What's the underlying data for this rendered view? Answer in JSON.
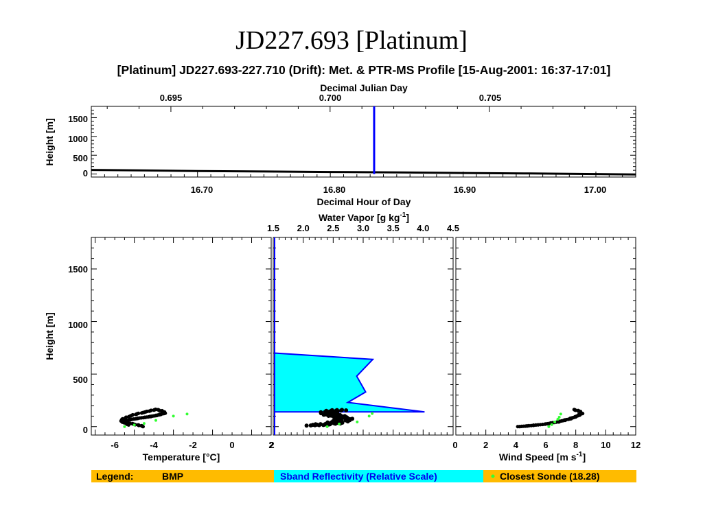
{
  "page_title": "JD227.693 [Platinum]",
  "chart_title": "[Platinum] JD227.693-227.710 (Drift): Met. & PTR-MS Profile [15-Aug-2001: 16:37-17:01]",
  "colors": {
    "legend_bar": "#ffbb00",
    "sband_fill": "#00ffff",
    "sband_line": "#0000ff",
    "sonde_points": "#33ff33",
    "bmp_points": "#000000",
    "time_marker": "#0000ff"
  },
  "legend": {
    "label": "Legend:",
    "bmp": "BMP",
    "sband": "Sband Reflectivity (Relative Scale)",
    "sonde": "Closest Sonde (18.28)"
  },
  "chart_data": [
    {
      "type": "line",
      "panel": "time-series",
      "xlabel": "Decimal Hour of Day",
      "x2label": "Decimal Julian Day",
      "ylabel": "Height [m]",
      "xlim": [
        16.62,
        17.03
      ],
      "x2lim": [
        0.6925,
        0.7096
      ],
      "ylim": [
        -80,
        1800
      ],
      "x_ticks": [
        "16.70",
        "16.80",
        "16.90",
        "17.00"
      ],
      "x2_ticks": [
        "0.695",
        "0.700",
        "0.705"
      ],
      "y_ticks": [
        "0",
        "500",
        "1000",
        "1500"
      ],
      "series": [
        {
          "name": "BMP",
          "x": [
            16.62,
            16.66,
            16.7,
            16.75,
            16.8,
            16.85,
            16.9,
            16.95,
            17.0,
            17.03
          ],
          "y": [
            110,
            95,
            80,
            68,
            55,
            42,
            28,
            15,
            0,
            -10
          ]
        }
      ],
      "current_time_marker": 16.833
    },
    {
      "type": "scatter",
      "panel": "temperature-profile",
      "xlabel": "Temperature [°C]",
      "ylabel": "Height [m]",
      "xlim": [
        -7.2,
        2
      ],
      "ylim": [
        -80,
        1800
      ],
      "x_ticks": [
        "-6",
        "-4",
        "-2",
        "0",
        "2"
      ],
      "y_ticks": [
        "0",
        "500",
        "1000",
        "1500"
      ],
      "series": [
        {
          "name": "BMP",
          "x": [
            -4.5,
            -4.8,
            -5.2,
            -5.6,
            -5.4,
            -4.8,
            -4.2,
            -3.8,
            -3.4,
            -3.6,
            -3.9,
            -4.3,
            -4.9,
            -5.4,
            -5.7,
            -5.2
          ],
          "y": [
            0,
            15,
            30,
            40,
            60,
            80,
            95,
            110,
            130,
            150,
            165,
            145,
            120,
            90,
            60,
            10
          ]
        },
        {
          "name": "Closest Sonde (18.28)",
          "x": [
            -5.5,
            -5.0,
            -4.5,
            -3.9,
            -3.0,
            -2.3
          ],
          "y": [
            0,
            15,
            30,
            60,
            100,
            120
          ]
        }
      ]
    },
    {
      "type": "area",
      "panel": "water-vapor-profile",
      "x2label": "Water Vapor [g kg-1]",
      "xlim": [
        1.5,
        4.5
      ],
      "ylim": [
        -80,
        1800
      ],
      "x_ticks": [
        "2",
        "0"
      ],
      "x2_ticks": [
        "1.5",
        "2.0",
        "2.5",
        "3.0",
        "3.5",
        "4.0",
        "4.5"
      ],
      "series": [
        {
          "name": "Sband Reflectivity (Relative Scale)",
          "x": [
            0.0,
            0.0,
            0.55,
            0.46,
            0.51,
            0.41,
            0.84,
            0.0,
            0.0
          ],
          "y": [
            1800,
            700,
            640,
            480,
            330,
            230,
            140,
            140,
            -80
          ]
        },
        {
          "name": "BMP",
          "x": [
            2.2,
            2.3,
            2.5,
            2.6,
            2.7,
            2.6,
            2.5,
            2.4,
            2.5,
            2.7
          ],
          "y": [
            10,
            20,
            30,
            50,
            70,
            90,
            110,
            130,
            150,
            160
          ]
        },
        {
          "name": "Closest Sonde (18.28)",
          "x": [
            2.4,
            2.6,
            2.9,
            3.1,
            3.15
          ],
          "y": [
            0,
            25,
            45,
            100,
            125
          ]
        }
      ]
    },
    {
      "type": "scatter",
      "panel": "wind-speed-profile",
      "xlabel": "Wind Speed [m s-1]",
      "xlim": [
        0,
        12
      ],
      "ylim": [
        -80,
        1800
      ],
      "x_ticks": [
        "2",
        "4",
        "6",
        "8",
        "10",
        "12"
      ],
      "series": [
        {
          "name": "BMP",
          "x": [
            4.2,
            5.0,
            6.0,
            6.8,
            7.5,
            8.0,
            8.4,
            8.2,
            7.8
          ],
          "y": [
            0,
            10,
            25,
            45,
            70,
            95,
            125,
            150,
            165
          ]
        },
        {
          "name": "Closest Sonde (18.28)",
          "x": [
            6.2,
            6.4,
            6.6,
            6.8,
            6.9,
            7.0
          ],
          "y": [
            0,
            20,
            45,
            70,
            90,
            120
          ]
        }
      ]
    }
  ],
  "axis_labels": {
    "ts_x_bottom": "Decimal Hour of Day",
    "ts_x_top": "Decimal Julian Day",
    "ts_y": "Height [m]",
    "temp_x": "Temperature [°C]",
    "wv_x_top_main": "Water Vapor [g kg",
    "wv_x_top_sup": "-1",
    "wv_x_top_end": "]",
    "ws_x_main": "Wind Speed [m s",
    "ws_x_sup": "-1",
    "ws_x_end": "]",
    "profile_y": "Height [m]"
  },
  "ticks": {
    "ts_x_bottom": [
      "16.70",
      "16.80",
      "16.90",
      "17.00"
    ],
    "ts_x_top": [
      "0.695",
      "0.700",
      "0.705"
    ],
    "ts_y": [
      "1500",
      "1000",
      "500",
      "0"
    ],
    "profile_y": [
      "1500",
      "1000",
      "500",
      "0"
    ],
    "temp_x": [
      "-6",
      "-4",
      "-2",
      "0",
      "2"
    ],
    "wv_x_top": [
      "1.5",
      "2.0",
      "2.5",
      "3.0",
      "3.5",
      "4.0",
      "4.5"
    ],
    "wv_x_bottom": [
      "2",
      "0"
    ],
    "ws_x": [
      "2",
      "4",
      "6",
      "8",
      "10",
      "12"
    ]
  }
}
